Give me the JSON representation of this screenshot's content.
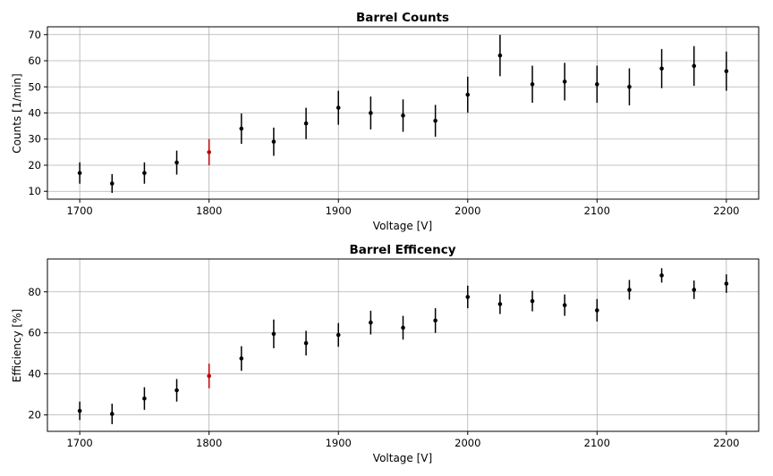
{
  "chart_data": [
    {
      "type": "scatter",
      "title": "Barrel Counts",
      "xlabel": "Voltage [V]",
      "ylabel": "Counts [1/min]",
      "xlim": [
        1675,
        2225
      ],
      "ylim": [
        7,
        73
      ],
      "xticks": [
        1700,
        1800,
        1900,
        2000,
        2100,
        2200
      ],
      "yticks": [
        10,
        20,
        30,
        40,
        50,
        60,
        70
      ],
      "grid": true,
      "error_bars": true,
      "colors": {
        "points": "#000000",
        "highlight": "#c00000"
      },
      "points": [
        {
          "x": 1700,
          "y": 17,
          "err": 4.1
        },
        {
          "x": 1725,
          "y": 13,
          "err": 3.6
        },
        {
          "x": 1750,
          "y": 17,
          "err": 4.1
        },
        {
          "x": 1775,
          "y": 21,
          "err": 4.6
        },
        {
          "x": 1800,
          "y": 25,
          "err": 5.0,
          "highlight": true
        },
        {
          "x": 1825,
          "y": 34,
          "err": 5.8
        },
        {
          "x": 1850,
          "y": 29,
          "err": 5.4
        },
        {
          "x": 1875,
          "y": 36,
          "err": 6.0
        },
        {
          "x": 1900,
          "y": 42,
          "err": 6.5
        },
        {
          "x": 1925,
          "y": 40,
          "err": 6.3
        },
        {
          "x": 1950,
          "y": 39,
          "err": 6.2
        },
        {
          "x": 1975,
          "y": 37,
          "err": 6.1
        },
        {
          "x": 2000,
          "y": 47,
          "err": 6.9
        },
        {
          "x": 2025,
          "y": 62,
          "err": 7.9
        },
        {
          "x": 2050,
          "y": 51,
          "err": 7.1
        },
        {
          "x": 2075,
          "y": 52,
          "err": 7.2
        },
        {
          "x": 2100,
          "y": 51,
          "err": 7.1
        },
        {
          "x": 2125,
          "y": 50,
          "err": 7.1
        },
        {
          "x": 2150,
          "y": 57,
          "err": 7.5
        },
        {
          "x": 2175,
          "y": 58,
          "err": 7.6
        },
        {
          "x": 2200,
          "y": 56,
          "err": 7.5
        }
      ]
    },
    {
      "type": "scatter",
      "title": "Barrel Efficency",
      "xlabel": "Voltage [V]",
      "ylabel": "Efficiency [%]",
      "xlim": [
        1675,
        2225
      ],
      "ylim": [
        12,
        96
      ],
      "xticks": [
        1700,
        1800,
        1900,
        2000,
        2100,
        2200
      ],
      "yticks": [
        20,
        40,
        60,
        80
      ],
      "grid": true,
      "error_bars": true,
      "colors": {
        "points": "#000000",
        "highlight": "#c00000"
      },
      "points": [
        {
          "x": 1700,
          "y": 22,
          "err": 4.5
        },
        {
          "x": 1725,
          "y": 20.5,
          "err": 5
        },
        {
          "x": 1750,
          "y": 28,
          "err": 5.5
        },
        {
          "x": 1775,
          "y": 32,
          "err": 5.5
        },
        {
          "x": 1800,
          "y": 39,
          "err": 6,
          "highlight": true
        },
        {
          "x": 1825,
          "y": 47.5,
          "err": 6
        },
        {
          "x": 1850,
          "y": 59.5,
          "err": 7
        },
        {
          "x": 1875,
          "y": 55,
          "err": 6
        },
        {
          "x": 1900,
          "y": 59,
          "err": 5.8
        },
        {
          "x": 1925,
          "y": 65,
          "err": 5.8
        },
        {
          "x": 1950,
          "y": 62.5,
          "err": 5.8
        },
        {
          "x": 1975,
          "y": 66,
          "err": 6
        },
        {
          "x": 2000,
          "y": 77.5,
          "err": 5.5
        },
        {
          "x": 2025,
          "y": 74,
          "err": 4.8
        },
        {
          "x": 2050,
          "y": 75.5,
          "err": 5
        },
        {
          "x": 2075,
          "y": 73.5,
          "err": 5.2
        },
        {
          "x": 2100,
          "y": 71,
          "err": 5.5
        },
        {
          "x": 2125,
          "y": 81,
          "err": 4.8
        },
        {
          "x": 2150,
          "y": 88,
          "err": 3.5
        },
        {
          "x": 2175,
          "y": 81,
          "err": 4.5
        },
        {
          "x": 2200,
          "y": 84,
          "err": 4.5
        }
      ]
    }
  ]
}
